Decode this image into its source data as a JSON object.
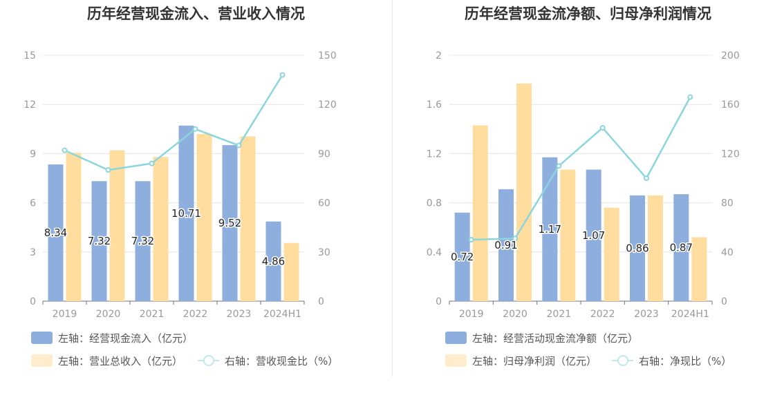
{
  "chart_data": [
    {
      "type": "bar",
      "title": "历年经营现金流入、营业收入情况",
      "categories": [
        "2019",
        "2020",
        "2021",
        "2022",
        "2023",
        "2024H1"
      ],
      "y_left": {
        "ticks": [
          "0",
          "3",
          "6",
          "9",
          "12",
          "15"
        ],
        "ylim": [
          0,
          15
        ]
      },
      "y_right": {
        "ticks": [
          "0",
          "30",
          "60",
          "90",
          "120",
          "150"
        ],
        "ylim": [
          0,
          150
        ]
      },
      "series": [
        {
          "name": "左轴：经营现金流入（亿元）",
          "type": "bar",
          "axis": "left",
          "color": "#8eaedd",
          "values": [
            8.34,
            7.32,
            7.32,
            10.71,
            9.52,
            4.86
          ],
          "labels": [
            "8.34",
            "7.32",
            "7.32",
            "10.71",
            "9.52",
            "4.86"
          ]
        },
        {
          "name": "左轴：营业总收入（亿元）",
          "type": "bar",
          "axis": "left",
          "color": "#ffdd9f",
          "values": [
            9.05,
            9.2,
            8.8,
            10.2,
            10.05,
            3.55
          ]
        },
        {
          "name": "右轴：营收现金比（%）",
          "type": "line",
          "axis": "right",
          "color": "#8bd6dc",
          "values": [
            92,
            80,
            84,
            105,
            95,
            138
          ]
        }
      ],
      "legend": {
        "position": "bottom-left",
        "legend_swatch_colors": [
          "#8eaedd",
          "#ffeccc",
          "#8bd6dc"
        ]
      }
    },
    {
      "type": "bar",
      "title": "历年经营现金流净额、归母净利润情况",
      "categories": [
        "2019",
        "2020",
        "2021",
        "2022",
        "2023",
        "2024H1"
      ],
      "y_left": {
        "ticks": [
          "0",
          "0.4",
          "0.8",
          "1.2",
          "1.6",
          "2"
        ],
        "ylim": [
          0,
          2
        ]
      },
      "y_right": {
        "ticks": [
          "0",
          "40",
          "80",
          "120",
          "160",
          "200"
        ],
        "ylim": [
          0,
          200
        ]
      },
      "series": [
        {
          "name": "左轴：经营活动现金流净额（亿元）",
          "type": "bar",
          "axis": "left",
          "color": "#8eaedd",
          "values": [
            0.72,
            0.91,
            1.17,
            1.07,
            0.86,
            0.87
          ],
          "labels": [
            "0.72",
            "0.91",
            "1.17",
            "1.07",
            "0.86",
            "0.87"
          ]
        },
        {
          "name": "左轴：归母净利润（亿元）",
          "type": "bar",
          "axis": "left",
          "color": "#ffdd9f",
          "values": [
            1.43,
            1.77,
            1.07,
            0.76,
            0.86,
            0.52
          ]
        },
        {
          "name": "右轴：净现比（%）",
          "type": "line",
          "axis": "right",
          "color": "#8bd6dc",
          "values": [
            50,
            51,
            110,
            141,
            100,
            166
          ]
        }
      ],
      "legend": {
        "position": "bottom-left",
        "legend_swatch_colors": [
          "#8eaedd",
          "#ffeccc",
          "#8bd6dc"
        ]
      }
    }
  ]
}
